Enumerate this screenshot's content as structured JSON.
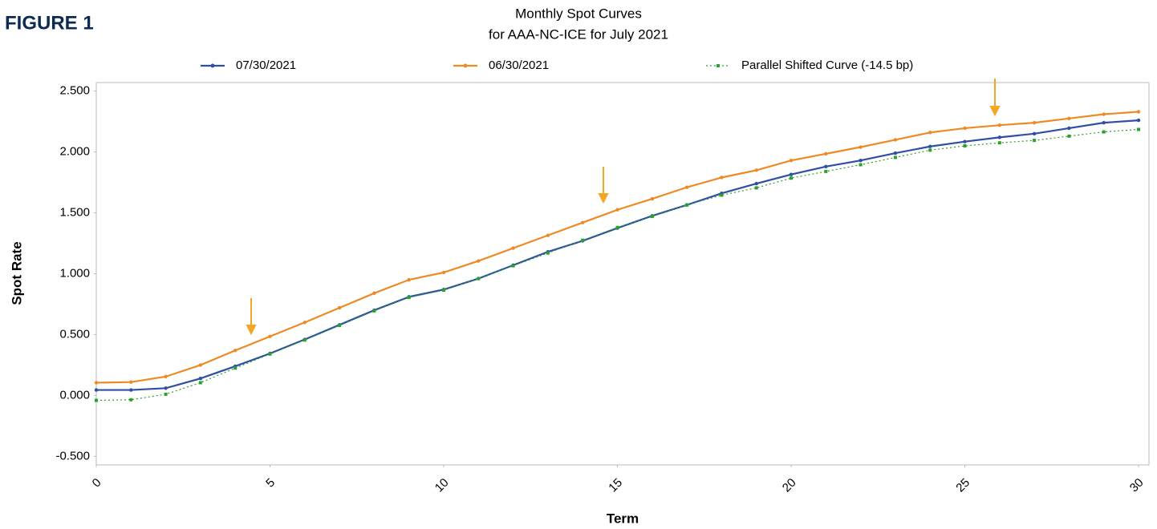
{
  "chart_data": {
    "type": "line",
    "figure_label": "FIGURE 1",
    "title": "Monthly Spot Curves",
    "subtitle": "for AAA-NC-ICE for July 2021",
    "x_label": "Term",
    "y_label": "Spot Rate",
    "x": [
      0,
      1,
      2,
      3,
      4,
      5,
      6,
      7,
      8,
      9,
      10,
      11,
      12,
      13,
      14,
      15,
      16,
      17,
      18,
      19,
      20,
      21,
      22,
      23,
      24,
      25,
      26,
      27,
      28,
      29,
      30
    ],
    "series": [
      {
        "name": "07/30/2021",
        "color": "#2e4fa3",
        "style": "solid",
        "marker": "circle",
        "values": [
          0.045,
          0.045,
          0.06,
          0.14,
          0.24,
          0.345,
          0.46,
          0.58,
          0.7,
          0.81,
          0.87,
          0.96,
          1.07,
          1.18,
          1.27,
          1.375,
          1.475,
          1.565,
          1.66,
          1.74,
          1.815,
          1.88,
          1.93,
          1.99,
          2.045,
          2.085,
          2.12,
          2.15,
          2.195,
          2.24,
          2.26
        ]
      },
      {
        "name": "06/30/2021",
        "color": "#ee8a25",
        "style": "solid",
        "marker": "circle",
        "values": [
          0.105,
          0.11,
          0.155,
          0.25,
          0.37,
          0.485,
          0.6,
          0.72,
          0.84,
          0.95,
          1.01,
          1.105,
          1.21,
          1.315,
          1.42,
          1.525,
          1.615,
          1.71,
          1.79,
          1.85,
          1.93,
          1.985,
          2.04,
          2.1,
          2.16,
          2.195,
          2.22,
          2.24,
          2.275,
          2.31,
          2.33
        ]
      },
      {
        "name": "Parallel Shifted Curve (-14.5 bp)",
        "color": "#2ca02c",
        "style": "dotted",
        "marker": "square",
        "values": [
          -0.04,
          -0.035,
          0.01,
          0.105,
          0.225,
          0.34,
          0.455,
          0.575,
          0.695,
          0.805,
          0.865,
          0.96,
          1.065,
          1.17,
          1.275,
          1.38,
          1.47,
          1.565,
          1.645,
          1.705,
          1.785,
          1.84,
          1.895,
          1.955,
          2.015,
          2.05,
          2.075,
          2.095,
          2.13,
          2.165,
          2.185
        ]
      }
    ],
    "xlim": [
      0,
      30.3
    ],
    "xticks": [
      0,
      5,
      10,
      15,
      20,
      25,
      30
    ],
    "ylim": [
      -0.57,
      2.57
    ],
    "yticks": [
      {
        "value": -0.5,
        "label": "-0.500"
      },
      {
        "value": 0,
        "label": "0.000"
      },
      {
        "value": 0.5,
        "label": "0.500"
      },
      {
        "value": 1,
        "label": "1.000"
      },
      {
        "value": 1.5,
        "label": "1.500"
      },
      {
        "value": 2,
        "label": "2.000"
      },
      {
        "value": 2.5,
        "label": "2.500"
      }
    ],
    "grid": false,
    "legend": "top"
  }
}
